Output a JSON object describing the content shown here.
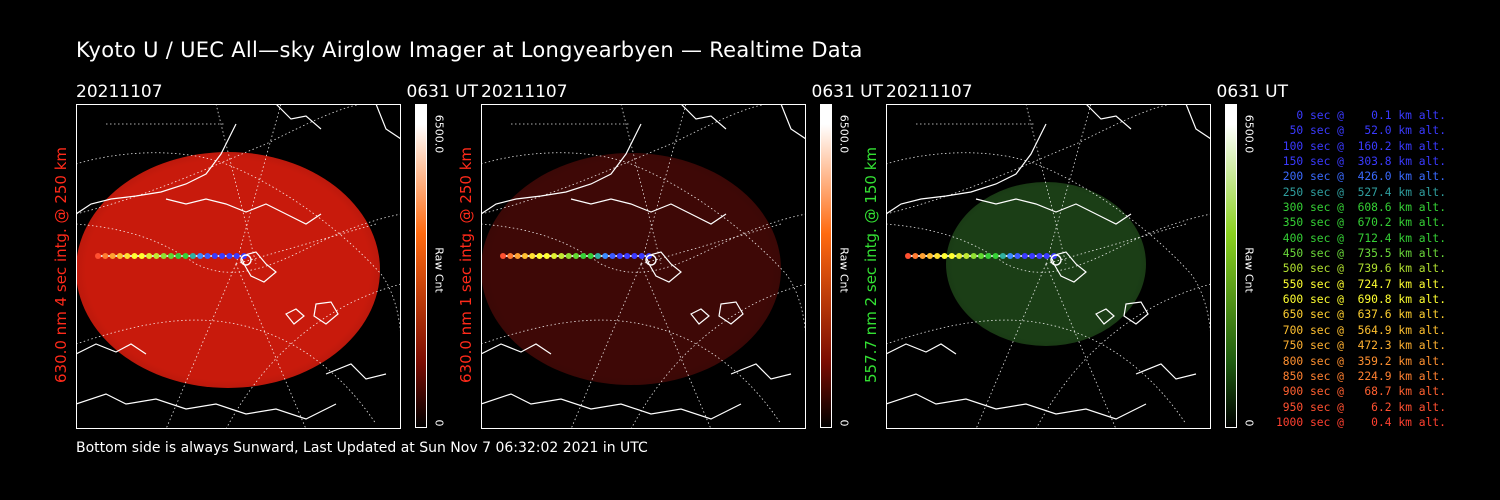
{
  "title": "Kyoto U / UEC All—sky Airglow Imager at Longyearbyen — Realtime Data",
  "footer": "Bottom side is always Sunward, Last Updated at Sun Nov  7 06:32:02 2021 in UTC",
  "panels": [
    {
      "date": "20211107",
      "time": "0631 UT",
      "label": "630.0 nm 4 sec intg. @ 250 km",
      "label_color": "#ff2a1a",
      "glow": "#c81a0c",
      "cbar_top": "#ffffff",
      "cbar_mid": "#ff6a10",
      "cbar_low": "#7a0c02",
      "cbar_max": "6500.0",
      "cbar_unit": "Raw Cnt",
      "cbar_min": "0"
    },
    {
      "date": "20211107",
      "time": "0631 UT",
      "label": "630.0 nm 1 sec intg. @ 250 km",
      "label_color": "#ff2a1a",
      "glow": "#3e0806",
      "cbar_top": "#ffffff",
      "cbar_mid": "#ff6a10",
      "cbar_low": "#7a0c02",
      "cbar_max": "6500.0",
      "cbar_unit": "Raw Cnt",
      "cbar_min": "0"
    },
    {
      "date": "20211107",
      "time": "0631 UT",
      "label": "557.7 nm 2 sec intg. @ 150 km",
      "label_color": "#33e033",
      "glow": "#1b3e16",
      "cbar_top": "#ffffff",
      "cbar_mid": "#8ad020",
      "cbar_low": "#1e5a10",
      "cbar_max": "6500.0",
      "cbar_unit": "Raw Cnt",
      "cbar_min": "0"
    }
  ],
  "legend": [
    {
      "text": "0 sec @    0.1 km alt.",
      "color": "#3a3aff"
    },
    {
      "text": "50 sec @   52.0 km alt.",
      "color": "#3a3aff"
    },
    {
      "text": "100 sec @  160.2 km alt.",
      "color": "#3a3aff"
    },
    {
      "text": "150 sec @  303.8 km alt.",
      "color": "#3a3aff"
    },
    {
      "text": "200 sec @  426.0 km alt.",
      "color": "#3a6aff"
    },
    {
      "text": "250 sec @  527.4 km alt.",
      "color": "#2f9f9f"
    },
    {
      "text": "300 sec @  608.6 km alt.",
      "color": "#35d035"
    },
    {
      "text": "350 sec @  670.2 km alt.",
      "color": "#35d035"
    },
    {
      "text": "400 sec @  712.4 km alt.",
      "color": "#35d035"
    },
    {
      "text": "450 sec @  735.5 km alt.",
      "color": "#6ad83a"
    },
    {
      "text": "500 sec @  739.6 km alt.",
      "color": "#b0e030"
    },
    {
      "text": "550 sec @  724.7 km alt.",
      "color": "#ffff30"
    },
    {
      "text": "600 sec @  690.8 km alt.",
      "color": "#ffff30"
    },
    {
      "text": "650 sec @  637.6 km alt.",
      "color": "#ffd030"
    },
    {
      "text": "700 sec @  564.9 km alt.",
      "color": "#ffc030"
    },
    {
      "text": "750 sec @  472.3 km alt.",
      "color": "#ffb030"
    },
    {
      "text": "800 sec @  359.2 km alt.",
      "color": "#ff9030"
    },
    {
      "text": "850 sec @  224.9 km alt.",
      "color": "#ff8030"
    },
    {
      "text": "900 sec @   68.7 km alt.",
      "color": "#ff6030"
    },
    {
      "text": "950 sec @    6.2 km alt.",
      "color": "#ff5030"
    },
    {
      "text": "1000 sec @    0.4 km alt.",
      "color": "#ff4030"
    }
  ]
}
